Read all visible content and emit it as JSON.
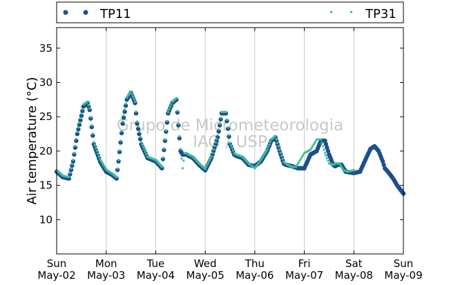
{
  "chart_data": {
    "type": "scatter",
    "title": "",
    "xlabel": "",
    "ylabel": "Air temperature (°C)",
    "xlim": [
      "2015-05-02 00:00",
      "2015-05-09 00:00"
    ],
    "ylim": [
      5,
      38
    ],
    "yticks": [
      10,
      15,
      20,
      25,
      30,
      35
    ],
    "xtick_labels": [
      {
        "day": "Sun",
        "date": "May-02"
      },
      {
        "day": "Mon",
        "date": "May-03"
      },
      {
        "day": "Tue",
        "date": "May-04"
      },
      {
        "day": "Wed",
        "date": "May-05"
      },
      {
        "day": "Thu",
        "date": "May-06"
      },
      {
        "day": "Fri",
        "date": "May-07"
      },
      {
        "day": "Sat",
        "date": "May-08"
      },
      {
        "day": "Sun",
        "date": "May-09"
      }
    ],
    "grid": "vertical",
    "legend_position": "top (above plot)",
    "watermark": [
      "Grupo de Micrometeorologia",
      "IAG / USP"
    ],
    "series": [
      {
        "name": "TP11",
        "color": "#1f4e8c",
        "marker": "dot",
        "x": [
          "05-02 00:00",
          "05-02 03:00",
          "05-02 06:00",
          "05-02 08:00",
          "05-02 10:00",
          "05-02 13:00",
          "05-02 15:00",
          "05-02 16:00",
          "05-02 18:00",
          "05-02 21:00",
          "05-03 00:00",
          "05-03 03:00",
          "05-03 05:00",
          "05-03 06:00",
          "05-03 08:00",
          "05-03 10:00",
          "05-03 12:00",
          "05-03 14:00",
          "05-03 15:00",
          "05-03 17:00",
          "05-03 20:00",
          "05-04 00:00",
          "05-04 03:00",
          "05-04 06:00",
          "05-04 08:00",
          "05-04 10:00",
          "05-04 12:00",
          "05-04 13:00",
          "05-04 14:00",
          "05-04 15:00",
          "05-04 16:00",
          "05-04 18:00",
          "05-04 21:00",
          "05-05 00:00",
          "05-05 03:00",
          "05-05 06:00",
          "05-05 08:00",
          "05-05 10:00",
          "05-05 12:00",
          "05-05 14:00",
          "05-05 15:00",
          "05-05 18:00",
          "05-05 21:00",
          "05-06 00:00",
          "05-06 03:00",
          "05-06 06:00",
          "05-06 08:00",
          "05-06 10:00",
          "05-06 12:00",
          "05-06 14:00",
          "05-06 15:00",
          "05-06 18:00",
          "05-06 21:00",
          "05-07 00:00",
          "05-07 03:00",
          "05-07 06:00",
          "05-07 08:00",
          "05-07 10:00",
          "05-07 12:00",
          "05-07 14:00",
          "05-07 15:00",
          "05-07 16:00",
          "05-07 18:00",
          "05-07 20:00",
          "05-08 00:00",
          "05-08 03:00",
          "05-08 06:00",
          "05-08 08:00",
          "05-08 10:00",
          "05-08 12:00",
          "05-08 14:00",
          "05-08 15:00",
          "05-08 17:00",
          "05-08 19:00",
          "05-08 21:00",
          "05-09 00:00"
        ],
        "y": [
          17.0,
          16.2,
          16.0,
          18.5,
          22.5,
          26.5,
          27.0,
          26.0,
          21.0,
          18.5,
          17.0,
          16.5,
          16.0,
          18.5,
          24.0,
          27.5,
          28.5,
          27.0,
          24.0,
          21.0,
          19.0,
          18.5,
          17.5,
          25.5,
          27.0,
          27.5,
          20.0,
          19.5,
          19.5,
          19.5,
          19.3,
          19.0,
          18.0,
          17.2,
          19.0,
          22.0,
          25.5,
          25.5,
          21.0,
          19.5,
          19.3,
          19.0,
          18.0,
          17.8,
          18.5,
          20.0,
          21.5,
          22.0,
          20.0,
          18.2,
          18.0,
          17.8,
          17.5,
          17.5,
          19.5,
          20.0,
          21.5,
          21.5,
          19.5,
          18.0,
          17.8,
          18.0,
          18.0,
          17.0,
          16.8,
          17.0,
          19.0,
          20.3,
          20.7,
          20.0,
          18.5,
          17.5,
          16.8,
          16.0,
          15.0,
          13.8
        ]
      },
      {
        "name": "TP31",
        "color": "#3cc09a",
        "marker": "small-square",
        "x": [
          "05-02 00:00",
          "05-02 03:00",
          "05-02 06:00",
          "05-02 08:00",
          "05-02 10:00",
          "05-02 13:00",
          "05-02 15:00",
          "05-02 16:00",
          "05-02 18:00",
          "05-02 21:00",
          "05-03 00:00",
          "05-03 03:00",
          "05-03 05:00",
          "05-03 06:00",
          "05-03 08:00",
          "05-03 10:00",
          "05-03 12:00",
          "05-03 14:00",
          "05-03 15:00",
          "05-03 17:00",
          "05-03 20:00",
          "05-04 00:00",
          "05-04 03:00",
          "05-04 06:00",
          "05-04 08:00",
          "05-04 10:00",
          "05-04 12:00",
          "05-04 13:00",
          "05-04 14:00",
          "05-04 15:00",
          "05-04 16:00",
          "05-04 18:00",
          "05-04 21:00",
          "05-05 00:00",
          "05-05 03:00",
          "05-05 06:00",
          "05-05 08:00",
          "05-05 10:00",
          "05-05 12:00",
          "05-05 14:00",
          "05-05 15:00",
          "05-05 18:00",
          "05-05 21:00",
          "05-06 00:00",
          "05-06 03:00",
          "05-06 06:00",
          "05-06 08:00",
          "05-06 10:00",
          "05-06 12:00",
          "05-06 14:00",
          "05-06 15:00",
          "05-06 16:00",
          "05-06 18:00",
          "05-06 20:00",
          "05-07 00:00",
          "05-07 03:00",
          "05-07 06:00",
          "05-07 08:00",
          "05-07 10:00",
          "05-07 12:00",
          "05-07 14:00",
          "05-07 15:00",
          "05-07 17:00",
          "05-07 19:00",
          "05-07 21:00",
          "05-08 00:00"
        ],
        "y": [
          17.2,
          16.4,
          16.2,
          18.7,
          22.8,
          26.8,
          27.2,
          26.2,
          21.3,
          18.8,
          17.3,
          16.7,
          16.2,
          18.7,
          24.3,
          27.8,
          28.7,
          27.2,
          24.3,
          21.3,
          19.2,
          18.7,
          17.7,
          25.7,
          27.2,
          27.7,
          20.3,
          17.5,
          19.7,
          19.7,
          19.5,
          19.2,
          18.2,
          17.4,
          19.2,
          22.3,
          25.7,
          25.7,
          21.2,
          19.7,
          19.5,
          19.2,
          18.2,
          17.5,
          18.7,
          20.2,
          21.7,
          22.2,
          20.2,
          18.4,
          18.2,
          18.0,
          17.7,
          17.7,
          19.7,
          20.2,
          21.7,
          21.7,
          19.7,
          18.2,
          18.0,
          18.2,
          18.2,
          17.2,
          17.0,
          17.2
        ]
      }
    ]
  }
}
